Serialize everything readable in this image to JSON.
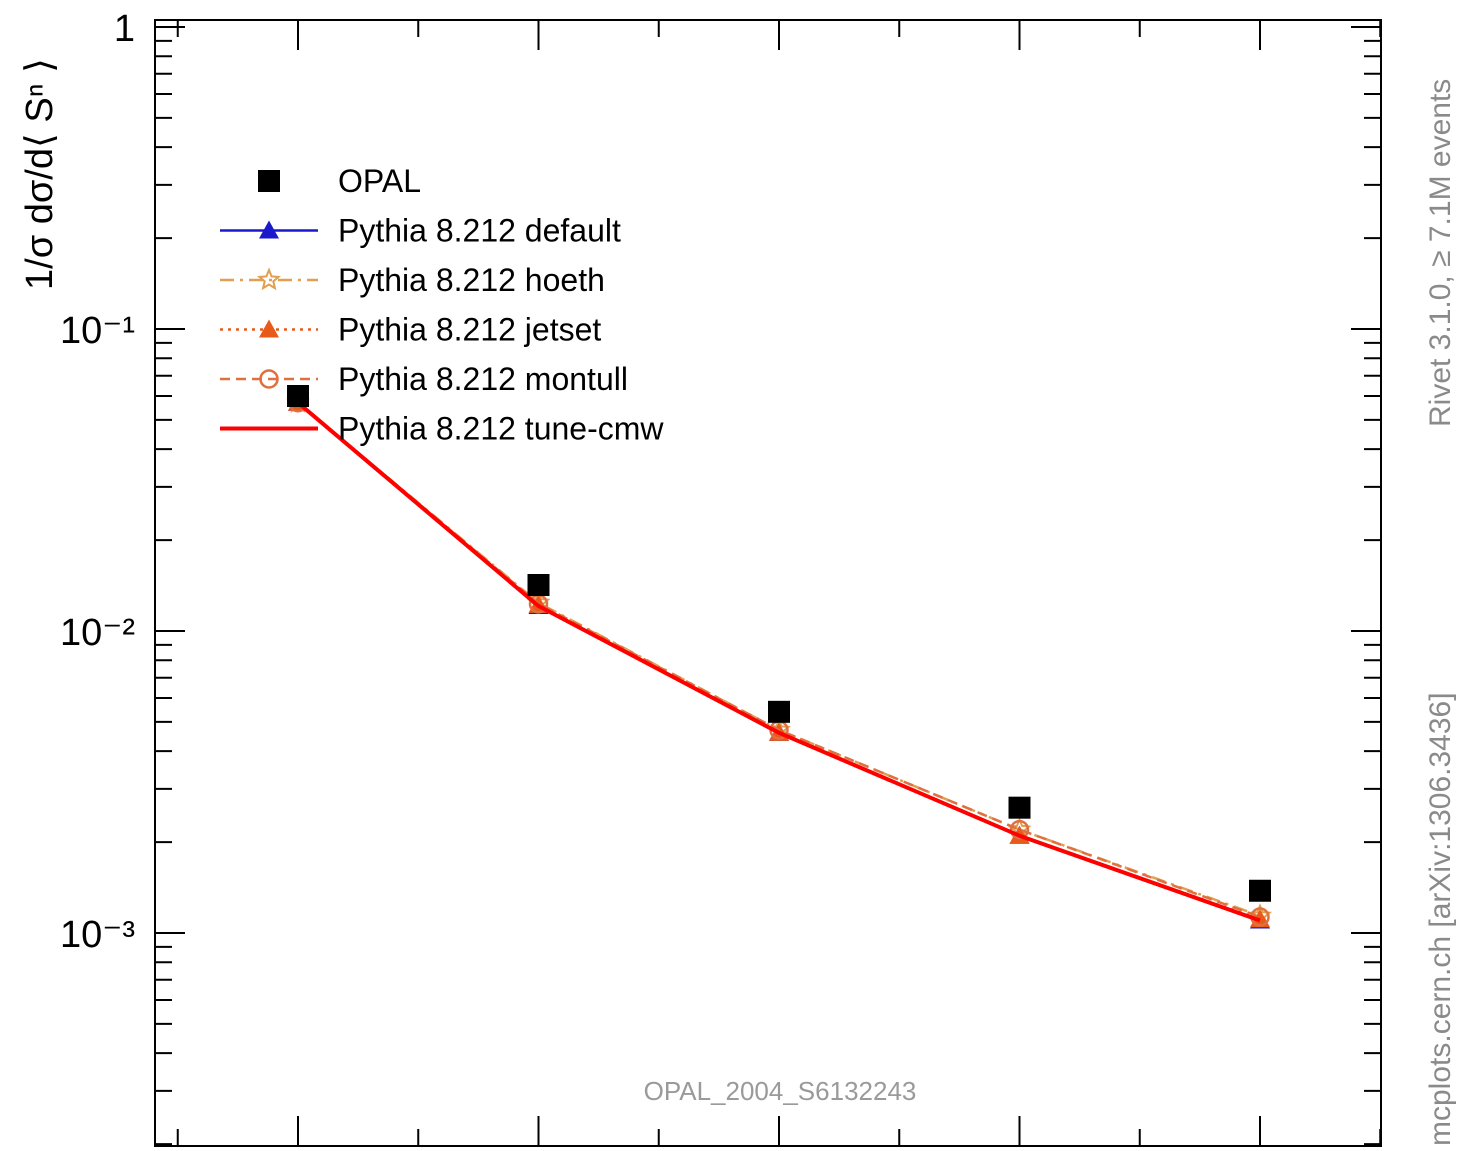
{
  "chart_data": {
    "type": "line",
    "title": "",
    "xlabel": "",
    "ylabel": "1/σ dσ/d⟨ Sⁿ ⟩",
    "y_scale": "log",
    "ylim": [
      0.0002,
      1
    ],
    "y_tick_labels": [
      {
        "value": 1,
        "text": "1"
      },
      {
        "value": 0.1,
        "text": "10⁻¹"
      },
      {
        "value": 0.01,
        "text": "10⁻²"
      },
      {
        "value": 0.001,
        "text": "10⁻³"
      }
    ],
    "x": [
      1,
      2,
      3,
      4,
      5
    ],
    "xlim": [
      0.4,
      5.5
    ],
    "legend_position": "top-left",
    "series": [
      {
        "name": "OPAL",
        "style": "points",
        "marker": "square",
        "color": "#000000",
        "values": [
          0.06,
          0.0142,
          0.0054,
          0.0026,
          0.00138
        ]
      },
      {
        "name": "Pythia 8.212 default",
        "style": "solid",
        "marker": "triangle",
        "color": "#1a1acc",
        "values": [
          0.057,
          0.0121,
          0.0046,
          0.0021,
          0.0011
        ]
      },
      {
        "name": "Pythia 8.212 hoeth",
        "style": "dashdot",
        "marker": "star",
        "color": "#e0a050",
        "values": [
          0.057,
          0.0124,
          0.0047,
          0.0022,
          0.00114
        ]
      },
      {
        "name": "Pythia 8.212 jetset",
        "style": "dotted",
        "marker": "triangle",
        "color": "#e85a1a",
        "values": [
          0.057,
          0.0122,
          0.0046,
          0.0021,
          0.00111
        ]
      },
      {
        "name": "Pythia 8.212 montull",
        "style": "dashed",
        "marker": "circle-open",
        "color": "#e07040",
        "values": [
          0.057,
          0.0123,
          0.0047,
          0.0022,
          0.00113
        ]
      },
      {
        "name": "Pythia 8.212 tune-cmw",
        "style": "solid-thick",
        "marker": "none",
        "color": "#ff0000",
        "values": [
          0.057,
          0.0121,
          0.0046,
          0.0021,
          0.0011
        ]
      }
    ],
    "annotations": {
      "analysis_id": "OPAL_2004_S6132243",
      "rivet_info": "Rivet 3.1.0, ≥ 7.1M events",
      "site_info": "mcplots.cern.ch [arXiv:1306.3436]"
    }
  }
}
